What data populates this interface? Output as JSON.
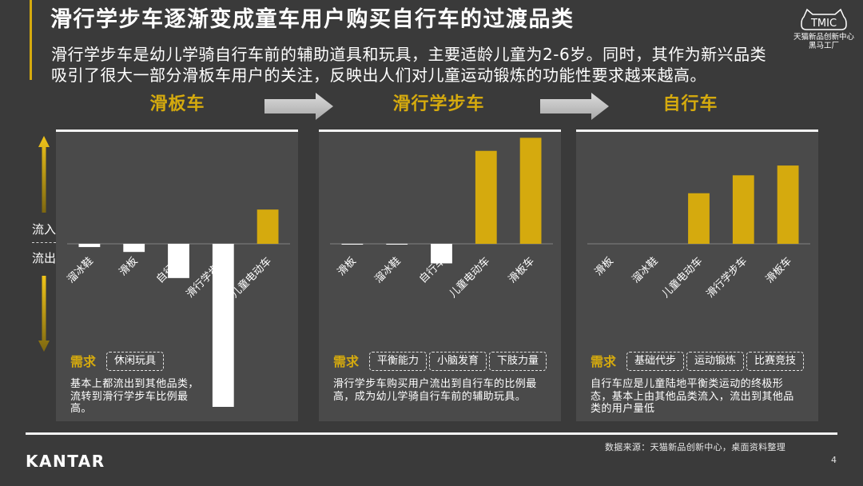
{
  "slide": {
    "title": "滑行学步车逐渐变成童车用户购买自行车的过渡品类",
    "subtitle_lines": [
      "滑行学步车是幼儿学骑自行车前的辅助道具和玩具，主要适龄儿童为2-6岁。同时，其作为新兴品类",
      "吸引了很大一部分滑板车用户的关注，反映出人们对儿童运动锻炼的功能性要求越来越高。"
    ],
    "logo": {
      "mark": "TMIC",
      "line1": "天猫新品创新中心",
      "line2": "黑马工厂"
    },
    "flow_labels": {
      "in": "流入",
      "out": "流出"
    },
    "footer": {
      "brand": "KANTAR",
      "source": "数据来源：天猫新品创新中心，桌面资料整理",
      "page_number": "4"
    }
  },
  "icons": {
    "connector": "right-arrow-icon",
    "inflow": "up-arrow-icon",
    "outflow": "down-arrow-icon"
  },
  "panels": [
    {
      "demand_label": "需求",
      "tags": [
        "休闲玩具"
      ],
      "desc_lines": [
        "基本上都流出到其他品类，",
        "流转到滑行学步车比例最",
        "高。"
      ]
    },
    {
      "demand_label": "需求",
      "tags": [
        "平衡能力",
        "小脑发育",
        "下肢力量"
      ],
      "desc_lines": [
        "滑行学步车购买用户流出到自行车的比例最",
        "高，成为幼儿学骑自行车前的辅助玩具。"
      ]
    },
    {
      "demand_label": "需求",
      "tags": [
        "基础代步",
        "运动锻炼",
        "比赛竞技"
      ],
      "desc_lines": [
        "自行车应是儿童陆地平衡类运动的终极形",
        "态，基本上由其他品类流入，流出到其他品",
        "类的用户量低"
      ]
    }
  ],
  "colors": {
    "background": "#3a3a3a",
    "panel": "#4a4a4a",
    "panel_border": "#f2f2f2",
    "accent": "#d5aa0e",
    "inflow_bar": "#d5aa0e",
    "outflow_bar": "#ffffff",
    "connector_arrow": "#c4c4c4"
  },
  "chart_data": [
    {
      "type": "bar",
      "title": "滑板车",
      "categories": [
        "溜冰鞋",
        "滑板",
        "自行车",
        "滑行学步车",
        "儿童电动车"
      ],
      "values": [
        -2,
        -5,
        -21,
        -100,
        21
      ]
    },
    {
      "type": "bar",
      "title": "滑行学步车",
      "categories": [
        "滑板",
        "溜冰鞋",
        "自行车",
        "儿童电动车",
        "滑板车"
      ],
      "values": [
        -0.5,
        -0.5,
        -12,
        57,
        65
      ]
    },
    {
      "type": "bar",
      "title": "自行车",
      "categories": [
        "滑板",
        "溜冰鞋",
        "儿童电动车",
        "滑行学步车",
        "滑板车"
      ],
      "values": [
        0,
        0,
        31,
        42,
        48
      ]
    }
  ]
}
